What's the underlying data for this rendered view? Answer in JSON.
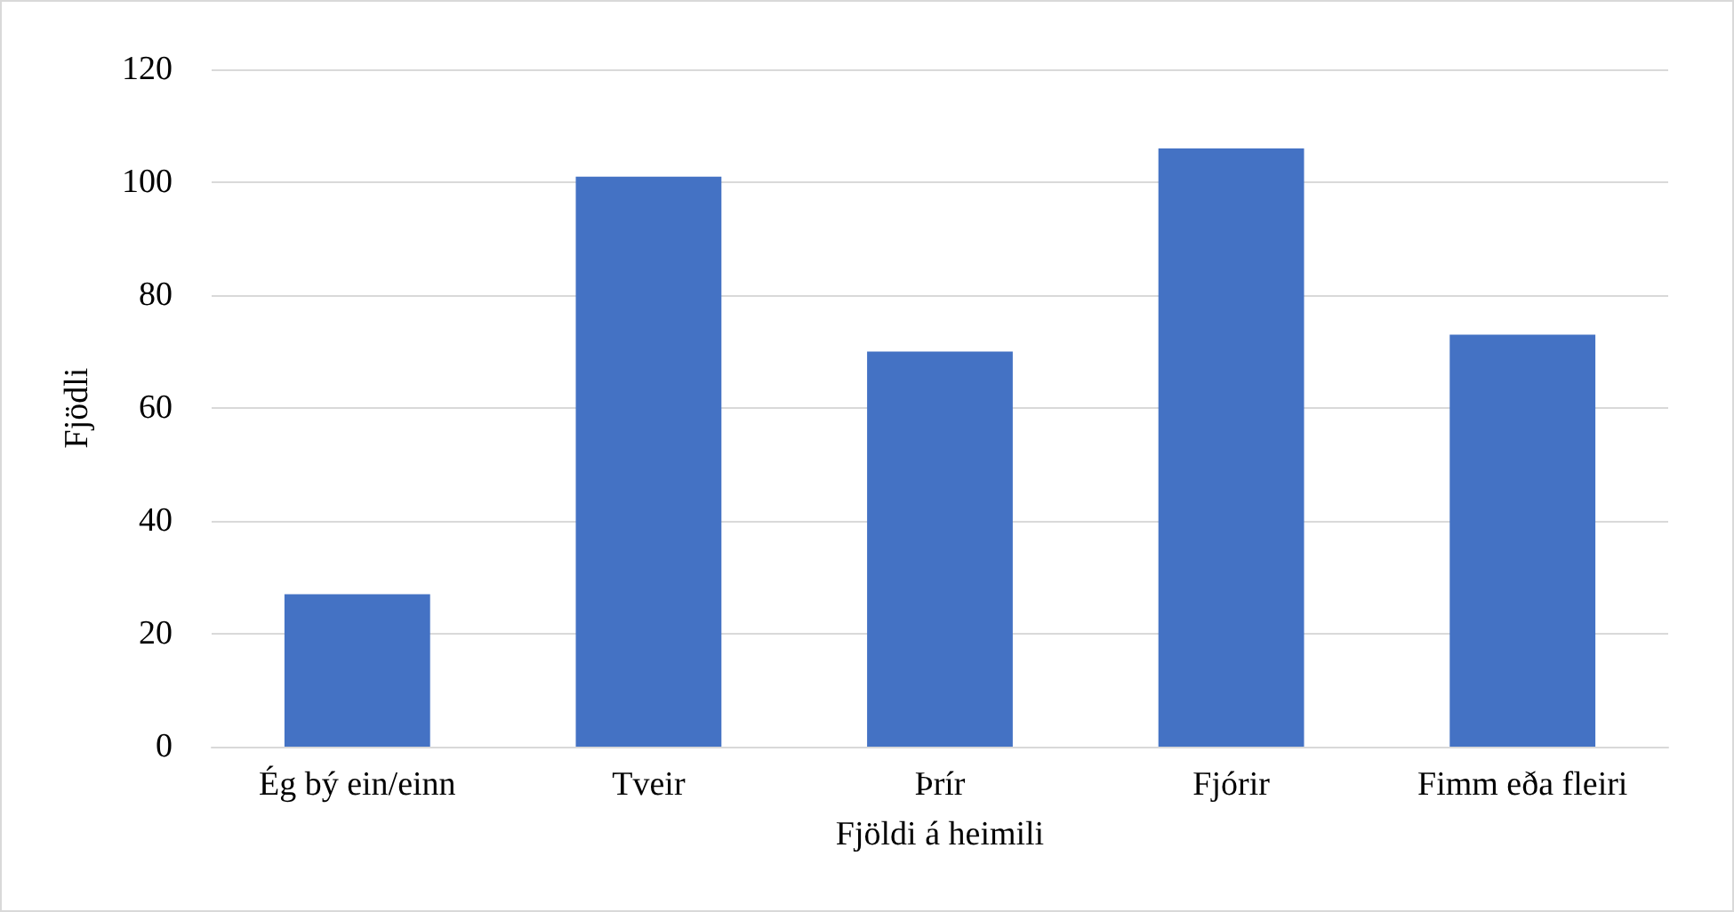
{
  "chart_data": {
    "type": "bar",
    "xlabel": "Fjöldi á heimili",
    "ylabel": "Fjödli",
    "categories": [
      "Ég bý ein/einn",
      "Tveir",
      "Þrír",
      "Fjórir",
      "Fimm eða fleiri"
    ],
    "values": [
      27,
      101,
      70,
      106,
      73
    ],
    "color": "#4472c4",
    "ylim": [
      0,
      120
    ],
    "yticks": [
      0,
      20,
      40,
      60,
      80,
      100,
      120
    ],
    "grid": "y"
  }
}
